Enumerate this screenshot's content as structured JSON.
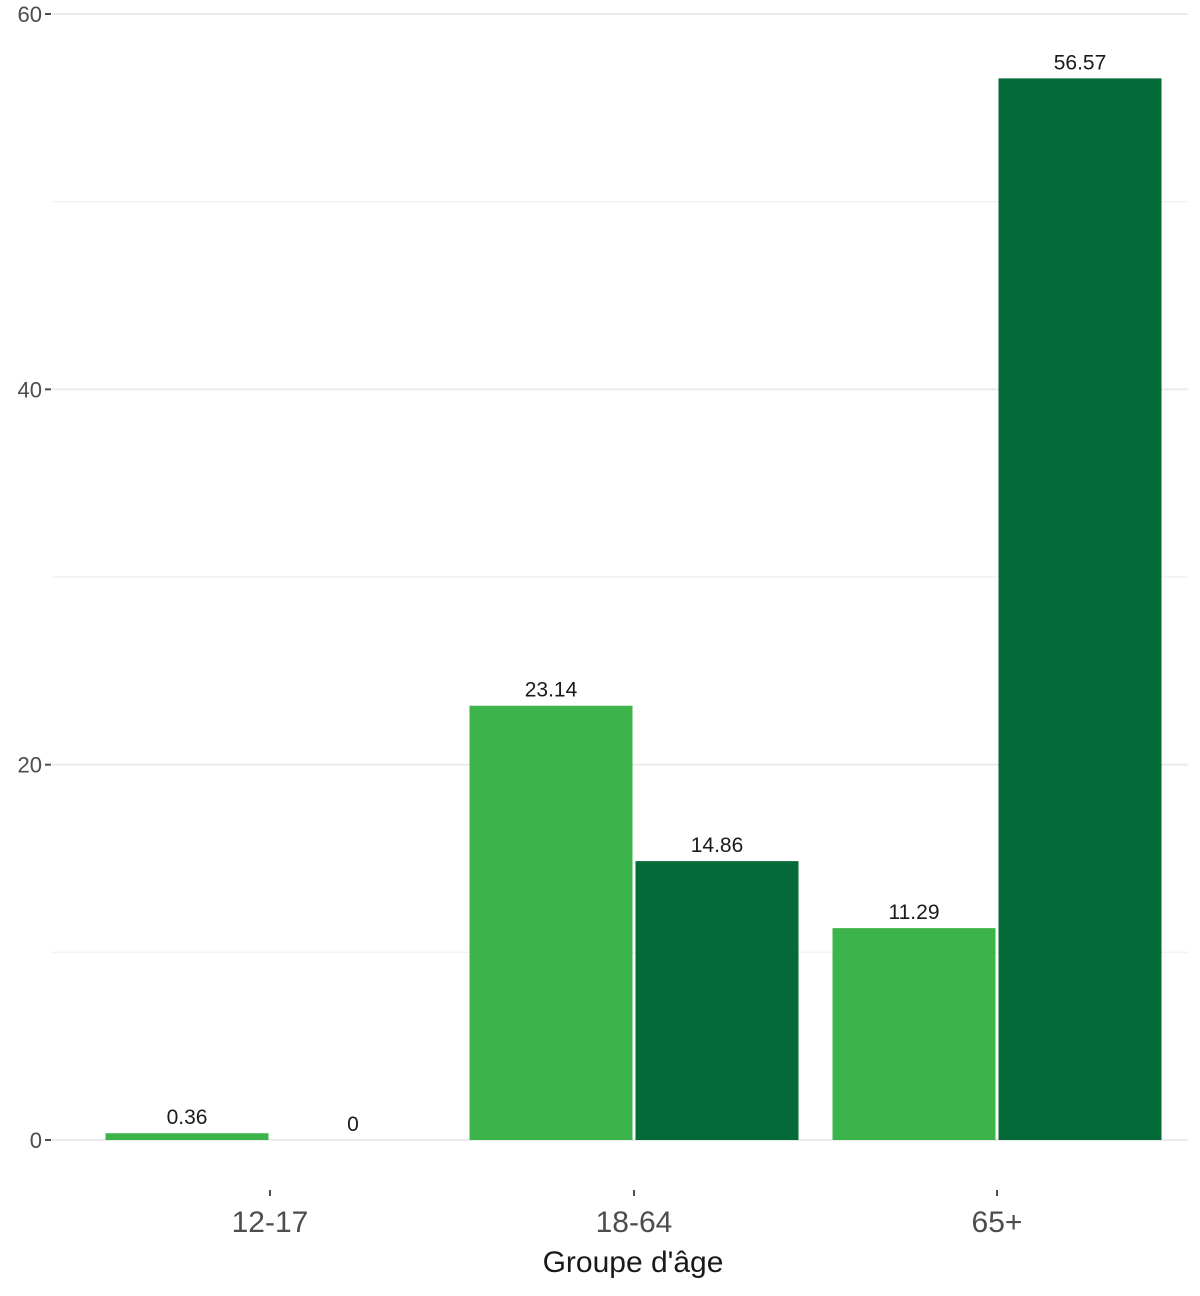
{
  "chart_data": {
    "type": "bar",
    "title": "",
    "xlabel": "Groupe d'âge",
    "ylabel": "",
    "categories": [
      "12-17",
      "18-64",
      "65+"
    ],
    "series": [
      {
        "color": "#3cb44b",
        "values": [
          0.36,
          23.14,
          11.29
        ],
        "labels": [
          "0.36",
          "23.14",
          "11.29"
        ]
      },
      {
        "color": "#046a38",
        "values": [
          0,
          14.86,
          56.57
        ],
        "labels": [
          "0",
          "14.86",
          "56.57"
        ]
      }
    ],
    "ylim": [
      0,
      60
    ],
    "yticks": [
      0,
      20,
      40,
      60
    ],
    "ytick_labels": [
      "0",
      "20",
      "40",
      "60"
    ],
    "grid": true,
    "minor_gridlines": [
      10,
      30,
      50
    ],
    "legend": "none"
  }
}
